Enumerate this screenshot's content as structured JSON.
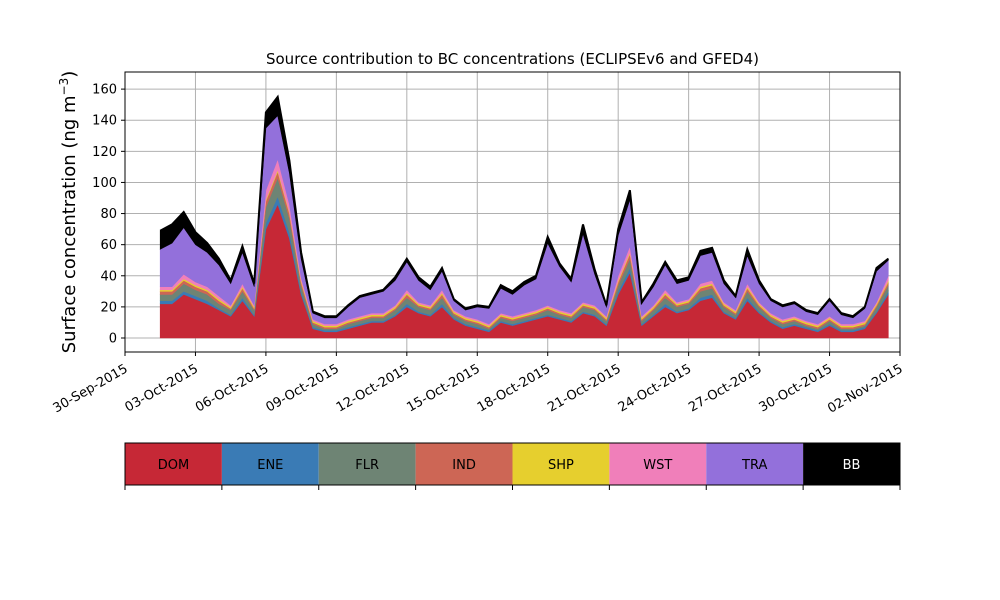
{
  "chart_data": {
    "type": "area",
    "title": "Source contribution to BC concentrations (ECLIPSEv6 and GFED4)",
    "ylabel": "Surface concentration (ng m",
    "ylabel_exponent": "−3",
    "ylabel_close": ")",
    "xlabel": "",
    "ylim": [
      -9,
      171
    ],
    "xlim": [
      "2015-09-30T00:00",
      "2015-11-02T00:00"
    ],
    "grid": true,
    "yticks": [
      0,
      20,
      40,
      60,
      80,
      100,
      120,
      140,
      160
    ],
    "xticks": [
      "30-Sep-2015",
      "03-Oct-2015",
      "06-Oct-2015",
      "09-Oct-2015",
      "12-Oct-2015",
      "15-Oct-2015",
      "18-Oct-2015",
      "21-Oct-2015",
      "24-Oct-2015",
      "27-Oct-2015",
      "30-Oct-2015",
      "02-Nov-2015"
    ],
    "legend_placement": "below",
    "x": [
      "2015-10-01T12:00",
      "2015-10-02T00:00",
      "2015-10-02T12:00",
      "2015-10-03T00:00",
      "2015-10-03T12:00",
      "2015-10-04T00:00",
      "2015-10-04T12:00",
      "2015-10-05T00:00",
      "2015-10-05T12:00",
      "2015-10-06T00:00",
      "2015-10-06T12:00",
      "2015-10-07T00:00",
      "2015-10-07T12:00",
      "2015-10-08T00:00",
      "2015-10-08T12:00",
      "2015-10-09T00:00",
      "2015-10-09T12:00",
      "2015-10-10T00:00",
      "2015-10-10T12:00",
      "2015-10-11T00:00",
      "2015-10-11T12:00",
      "2015-10-12T00:00",
      "2015-10-12T12:00",
      "2015-10-13T00:00",
      "2015-10-13T12:00",
      "2015-10-14T00:00",
      "2015-10-14T12:00",
      "2015-10-15T00:00",
      "2015-10-15T12:00",
      "2015-10-16T00:00",
      "2015-10-16T12:00",
      "2015-10-17T00:00",
      "2015-10-17T12:00",
      "2015-10-18T00:00",
      "2015-10-18T12:00",
      "2015-10-19T00:00",
      "2015-10-19T12:00",
      "2015-10-20T00:00",
      "2015-10-20T12:00",
      "2015-10-21T00:00",
      "2015-10-21T12:00",
      "2015-10-22T00:00",
      "2015-10-22T12:00",
      "2015-10-23T00:00",
      "2015-10-23T12:00",
      "2015-10-24T00:00",
      "2015-10-24T12:00",
      "2015-10-25T00:00",
      "2015-10-25T12:00",
      "2015-10-26T00:00",
      "2015-10-26T12:00",
      "2015-10-27T00:00",
      "2015-10-27T12:00",
      "2015-10-28T00:00",
      "2015-10-28T12:00",
      "2015-10-29T00:00",
      "2015-10-29T12:00",
      "2015-10-30T00:00",
      "2015-10-30T12:00",
      "2015-10-31T00:00",
      "2015-10-31T12:00",
      "2015-11-01T00:00",
      "2015-11-01T12:00"
    ],
    "series": [
      {
        "name": "DOM",
        "color": "#c62836",
        "values": [
          22,
          22,
          28,
          25,
          22,
          18,
          14,
          24,
          14,
          70,
          86,
          64,
          28,
          6,
          4,
          4,
          6,
          8,
          10,
          10,
          14,
          20,
          16,
          14,
          20,
          12,
          8,
          6,
          4,
          10,
          8,
          10,
          12,
          14,
          12,
          10,
          16,
          14,
          8,
          28,
          42,
          8,
          14,
          20,
          16,
          18,
          24,
          26,
          16,
          12,
          24,
          16,
          10,
          6,
          8,
          6,
          4,
          8,
          4,
          4,
          6,
          16,
          28
        ]
      },
      {
        "name": "ENE",
        "color": "#3a7bb5",
        "values": [
          2,
          2,
          2,
          2,
          2,
          1,
          1,
          2,
          1,
          4,
          5,
          4,
          2,
          1,
          1,
          1,
          1,
          1,
          1,
          1,
          1,
          2,
          1,
          1,
          2,
          1,
          1,
          1,
          1,
          1,
          1,
          1,
          1,
          1,
          1,
          1,
          1,
          1,
          1,
          2,
          3,
          1,
          1,
          2,
          1,
          1,
          2,
          2,
          1,
          1,
          2,
          1,
          1,
          1,
          1,
          1,
          1,
          1,
          1,
          1,
          1,
          1,
          2
        ]
      },
      {
        "name": "FLR",
        "color": "#6e8474",
        "values": [
          4,
          4,
          5,
          4,
          4,
          3,
          3,
          4,
          3,
          10,
          12,
          9,
          4,
          2,
          1,
          1,
          2,
          2,
          2,
          2,
          3,
          4,
          3,
          3,
          4,
          2,
          2,
          2,
          1,
          2,
          2,
          2,
          2,
          3,
          2,
          2,
          3,
          3,
          2,
          4,
          6,
          2,
          3,
          4,
          3,
          3,
          4,
          4,
          3,
          2,
          4,
          3,
          2,
          2,
          2,
          1,
          1,
          2,
          1,
          1,
          1,
          3,
          4
        ]
      },
      {
        "name": "IND",
        "color": "#cd6655",
        "values": [
          2,
          2,
          2,
          2,
          2,
          2,
          1,
          2,
          1,
          4,
          4,
          3,
          2,
          1,
          1,
          1,
          1,
          1,
          1,
          1,
          1,
          2,
          1,
          1,
          2,
          1,
          1,
          1,
          1,
          1,
          1,
          1,
          1,
          1,
          1,
          1,
          1,
          1,
          1,
          2,
          3,
          1,
          1,
          2,
          1,
          1,
          2,
          2,
          1,
          1,
          2,
          1,
          1,
          1,
          1,
          1,
          1,
          1,
          1,
          1,
          1,
          1,
          2
        ]
      },
      {
        "name": "SHP",
        "color": "#e6cf2e",
        "values": [
          1,
          1,
          1,
          1,
          1,
          1,
          1,
          1,
          1,
          1,
          1,
          1,
          1,
          1,
          1,
          1,
          1,
          1,
          1,
          1,
          1,
          1,
          1,
          1,
          1,
          1,
          1,
          1,
          1,
          1,
          1,
          1,
          1,
          1,
          1,
          1,
          1,
          1,
          1,
          1,
          1,
          1,
          1,
          1,
          1,
          1,
          1,
          1,
          1,
          1,
          1,
          1,
          1,
          1,
          1,
          1,
          1,
          1,
          1,
          1,
          1,
          1,
          1
        ]
      },
      {
        "name": "WST",
        "color": "#f07fba",
        "values": [
          2,
          2,
          3,
          2,
          2,
          2,
          1,
          2,
          1,
          6,
          7,
          5,
          2,
          1,
          1,
          1,
          1,
          1,
          1,
          1,
          1,
          2,
          1,
          1,
          2,
          1,
          1,
          1,
          1,
          1,
          1,
          1,
          1,
          1,
          1,
          1,
          1,
          1,
          1,
          3,
          4,
          1,
          1,
          2,
          1,
          1,
          2,
          2,
          1,
          1,
          2,
          1,
          1,
          1,
          1,
          1,
          1,
          1,
          1,
          1,
          1,
          1,
          3
        ]
      },
      {
        "name": "TRA",
        "color": "#9370db",
        "values": [
          24,
          28,
          30,
          24,
          22,
          20,
          14,
          20,
          12,
          40,
          28,
          20,
          12,
          4,
          4,
          4,
          8,
          12,
          12,
          14,
          16,
          18,
          14,
          10,
          12,
          6,
          4,
          8,
          10,
          16,
          14,
          18,
          20,
          40,
          28,
          20,
          44,
          20,
          6,
          26,
          30,
          8,
          12,
          16,
          12,
          12,
          18,
          18,
          12,
          8,
          18,
          12,
          8,
          8,
          8,
          6,
          6,
          10,
          6,
          4,
          8,
          20,
          10
        ]
      },
      {
        "name": "BB",
        "color": "#000000",
        "values": [
          12,
          12,
          10,
          8,
          6,
          4,
          2,
          4,
          2,
          10,
          12,
          8,
          4,
          1,
          1,
          1,
          1,
          1,
          1,
          1,
          2,
          2,
          2,
          2,
          2,
          1,
          1,
          1,
          1,
          2,
          2,
          2,
          2,
          4,
          2,
          2,
          6,
          3,
          1,
          4,
          6,
          1,
          2,
          2,
          2,
          2,
          3,
          3,
          2,
          1,
          4,
          2,
          1,
          1,
          1,
          1,
          1,
          1,
          1,
          1,
          1,
          2,
          1
        ]
      }
    ]
  }
}
